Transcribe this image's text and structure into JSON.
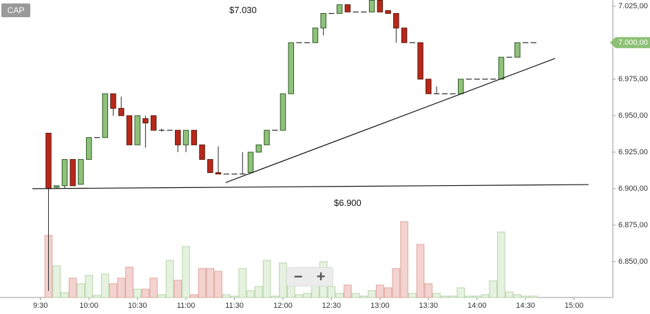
{
  "chart_data": {
    "type": "candlestick",
    "ui": {
      "symbol_button": "CAP",
      "zoom_out": "−",
      "zoom_in": "+"
    },
    "annotations": [
      "$7.030",
      "$6.900"
    ],
    "last_price": {
      "value": 7000,
      "label": "7.000,00",
      "color": "#8cc175"
    },
    "up_color": "#8fc17a",
    "up_edge": "#2f5a26",
    "down_color": "#b8281a",
    "down_edge": "#5a1a10",
    "volume_up_color": "#e6f2e0",
    "volume_up_edge": "#b5d4a8",
    "volume_down_color": "#f3d3cf",
    "volume_down_edge": "#dfa49c",
    "xlim": [
      545,
      924
    ],
    "ylim": [
      6825.5,
      7029.2
    ],
    "volume_lim": [
      0,
      120
    ],
    "xticks": [
      {
        "value": 570,
        "label": "9:30"
      },
      {
        "value": 600,
        "label": "10:00"
      },
      {
        "value": 630,
        "label": "10:30"
      },
      {
        "value": 660,
        "label": "11:00"
      },
      {
        "value": 690,
        "label": "11:30"
      },
      {
        "value": 720,
        "label": "12:00"
      },
      {
        "value": 750,
        "label": "12:30"
      },
      {
        "value": 780,
        "label": "13:00"
      },
      {
        "value": 810,
        "label": "13:30"
      },
      {
        "value": 840,
        "label": "14:00"
      },
      {
        "value": 870,
        "label": "14:30"
      },
      {
        "value": 900,
        "label": "15:00"
      }
    ],
    "yticks": [
      {
        "value": 7025,
        "label": "7.025,00"
      },
      {
        "value": 7000,
        "label": "7.000,00"
      },
      {
        "value": 6975,
        "label": "6.975,00"
      },
      {
        "value": 6950,
        "label": "6.950,00"
      },
      {
        "value": 6925,
        "label": "6.925,00"
      },
      {
        "value": 6900,
        "label": "6.900,00"
      },
      {
        "value": 6875,
        "label": "6.875,00"
      },
      {
        "value": 6850,
        "label": "6.850,00"
      }
    ],
    "trendlines": [
      {
        "x": [
          565,
          909
        ],
        "y": [
          6900,
          6902.8
        ]
      },
      {
        "x": [
          684.6,
          888.3
        ],
        "y": [
          6904.2,
          6989.2
        ]
      }
    ],
    "candles": {
      "x": [
        575,
        580,
        585,
        590,
        595,
        600,
        605,
        610,
        615,
        620,
        625,
        630,
        635,
        640,
        645,
        650,
        655,
        660,
        665,
        670,
        675,
        680,
        685,
        690,
        695,
        700,
        705,
        710,
        715,
        720,
        725,
        730,
        735,
        740,
        745,
        750,
        755,
        760,
        765,
        770,
        775,
        780,
        785,
        790,
        795,
        800,
        805,
        810,
        815,
        820,
        825,
        830,
        835,
        840,
        845,
        850,
        855,
        860,
        865,
        870,
        875
      ],
      "open": [
        6938,
        6901,
        6902,
        6920,
        6903,
        6920,
        6935,
        6935,
        6965,
        6955,
        6950,
        6930,
        6948,
        6950,
        6940,
        6940,
        6940,
        6930,
        6940,
        6930,
        6920,
        6911,
        6910,
        6910,
        6910,
        6911,
        6925,
        6930,
        6940,
        6940,
        6965,
        7000,
        7000,
        7000,
        7010,
        7020,
        7020,
        7026,
        7021,
        7021,
        7021,
        7029,
        7022,
        7020,
        7010,
        7000,
        7000,
        6975,
        6965,
        6965,
        6965,
        6965,
        6975,
        6975,
        6975,
        6975,
        6975,
        6990,
        6990,
        7000,
        7000
      ],
      "high": [
        6938,
        6902,
        6920,
        6920,
        6920,
        6935,
        6935,
        6965,
        6965,
        6963,
        6950,
        6950,
        6950,
        6950,
        6941,
        6940,
        6940,
        6940,
        6940,
        6930,
        6920,
        6929,
        6910,
        6910,
        6925,
        6925,
        6930,
        6940,
        6940,
        6965,
        7000,
        7000,
        7000,
        7010,
        7020,
        7020,
        7026,
        7026,
        7021,
        7021,
        7029,
        7029,
        7022,
        7020,
        7010,
        7000,
        7000,
        6975,
        6970,
        6965,
        6965,
        6975,
        6975,
        6975,
        6975,
        6975,
        6990,
        6990,
        7000,
        7000,
        7000
      ],
      "low": [
        6830,
        6900,
        6900,
        6902,
        6903,
        6920,
        6935,
        6935,
        6950,
        6950,
        6930,
        6930,
        6928,
        6940,
        6939,
        6940,
        6925,
        6925,
        6930,
        6920,
        6911,
        6910,
        6910,
        6910,
        6910,
        6911,
        6925,
        6930,
        6940,
        6940,
        6965,
        7000,
        7000,
        7000,
        7005,
        7020,
        7020,
        7021,
        7021,
        7021,
        7021,
        7021,
        7020,
        7000,
        7000,
        7000,
        6975,
        6965,
        6965,
        6965,
        6965,
        6965,
        6975,
        6975,
        6975,
        6975,
        6975,
        6990,
        6990,
        7000,
        7000
      ],
      "close": [
        6900,
        6902,
        6920,
        6902,
        6920,
        6935,
        6935,
        6965,
        6955,
        6950,
        6930,
        6950,
        6945,
        6940,
        6940,
        6940,
        6930,
        6940,
        6930,
        6920,
        6911,
        6910,
        6910,
        6910,
        6910,
        6925,
        6930,
        6940,
        6940,
        6965,
        7000,
        7000,
        7000,
        7010,
        7020,
        7020,
        7026,
        7021,
        7021,
        7021,
        7029,
        7021,
        7020,
        7010,
        7000,
        7000,
        6975,
        6965,
        6965,
        6965,
        6965,
        6975,
        6975,
        6975,
        6975,
        6975,
        6990,
        6990,
        7000,
        7000,
        7000
      ],
      "volume": [
        90,
        46,
        7,
        28,
        20,
        32,
        3,
        34,
        20,
        28,
        44,
        12,
        12,
        28,
        4,
        54,
        25,
        74,
        4,
        42,
        42,
        38,
        4,
        2,
        42,
        10,
        16,
        54,
        2,
        50,
        30,
        4,
        6,
        20,
        52,
        16,
        6,
        18,
        6,
        2,
        10,
        18,
        14,
        42,
        110,
        6,
        77,
        20,
        6,
        2,
        2,
        14,
        2,
        2,
        4,
        24,
        95,
        8,
        4,
        2,
        2
      ]
    }
  }
}
